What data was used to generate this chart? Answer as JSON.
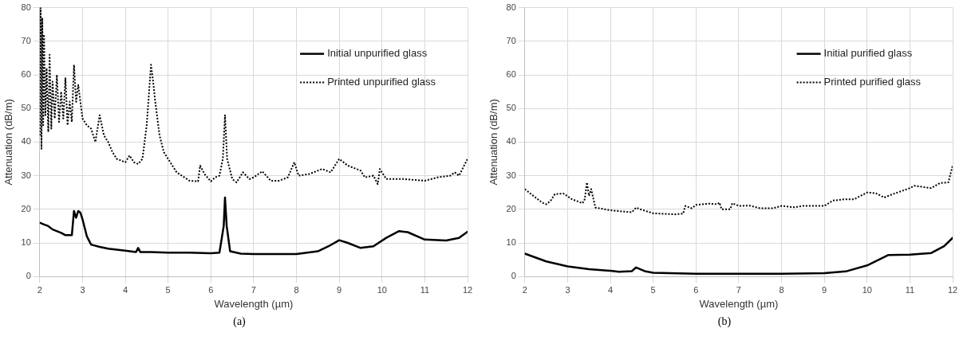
{
  "chart_data": [
    {
      "type": "line",
      "xlabel": "Wavelength (µm)",
      "ylabel": "Attenuation (dB/m)",
      "xlim": [
        2,
        12
      ],
      "xticks": [
        2,
        3,
        4,
        5,
        6,
        7,
        8,
        9,
        10,
        11,
        12
      ],
      "ylim": [
        0,
        80
      ],
      "yticks": [
        0,
        10,
        20,
        30,
        40,
        50,
        60,
        70,
        80
      ],
      "grid": true,
      "legend": "top right",
      "marker": "none",
      "annotations": [
        "(a)"
      ],
      "series": [
        {
          "name": "Initial unpurified glass",
          "color": "#000000",
          "line_style": "solid",
          "x": [
            2,
            2.1,
            2.2,
            2.3,
            2.5,
            2.6,
            2.75,
            2.8,
            2.85,
            2.9,
            2.95,
            3.0,
            3.1,
            3.2,
            3.4,
            3.6,
            4.0,
            4.25,
            4.3,
            4.35,
            4.6,
            5,
            5.5,
            6,
            6.2,
            6.3,
            6.33,
            6.37,
            6.45,
            6.7,
            7,
            8,
            8.5,
            8.75,
            9,
            9.2,
            9.5,
            9.8,
            10.1,
            10.4,
            10.6,
            11,
            11.5,
            11.8,
            12
          ],
          "values": [
            16,
            15.5,
            15,
            14,
            13,
            12.3,
            12.3,
            19.5,
            17.5,
            19.5,
            19,
            17,
            12,
            9.5,
            8.8,
            8.3,
            7.7,
            7.3,
            8.5,
            7.3,
            7.3,
            7.1,
            7.1,
            6.9,
            7.1,
            15,
            23.5,
            15,
            7.5,
            6.8,
            6.7,
            6.7,
            7.5,
            9,
            10.8,
            10,
            8.5,
            9,
            11.5,
            13.5,
            13.2,
            11,
            10.7,
            11.5,
            13.3
          ]
        },
        {
          "name": "Printed unpurified glass",
          "color": "#000000",
          "line_style": "dotted",
          "x": [
            2.0,
            2.02,
            2.04,
            2.06,
            2.08,
            2.1,
            2.13,
            2.16,
            2.2,
            2.23,
            2.27,
            2.3,
            2.35,
            2.4,
            2.45,
            2.5,
            2.55,
            2.6,
            2.65,
            2.7,
            2.75,
            2.8,
            2.85,
            2.9,
            3.0,
            3.1,
            3.2,
            3.3,
            3.4,
            3.5,
            3.6,
            3.7,
            3.8,
            4.0,
            4.1,
            4.2,
            4.3,
            4.4,
            4.5,
            4.6,
            4.65,
            4.7,
            4.8,
            4.9,
            5.0,
            5.2,
            5.5,
            5.7,
            5.75,
            5.85,
            6.0,
            6.1,
            6.2,
            6.28,
            6.33,
            6.38,
            6.5,
            6.6,
            6.75,
            6.9,
            7.0,
            7.2,
            7.4,
            7.6,
            7.8,
            7.95,
            8.05,
            8.3,
            8.6,
            8.8,
            9.0,
            9.2,
            9.5,
            9.6,
            9.8,
            9.9,
            9.95,
            10.1,
            10.5,
            11,
            11.3,
            11.6,
            11.7,
            11.8,
            12
          ],
          "values": [
            42,
            80,
            38,
            77,
            45,
            72,
            48,
            62,
            43,
            66,
            44,
            58,
            47,
            60,
            46,
            55,
            47,
            59,
            45,
            52,
            46,
            63,
            52,
            57,
            47,
            45,
            44,
            40,
            48,
            42,
            40,
            37,
            35,
            34,
            36,
            34,
            33.5,
            35,
            45,
            63,
            58,
            52,
            42,
            37,
            35,
            31,
            28.5,
            28.3,
            33,
            30.5,
            28.3,
            29.5,
            30,
            35,
            48,
            35,
            29,
            28,
            31,
            29,
            29.5,
            31.3,
            28.5,
            28.5,
            29.5,
            34,
            30,
            30.5,
            32,
            31,
            35,
            33,
            31.5,
            29.5,
            30,
            27.5,
            32,
            29,
            29,
            28.5,
            29.5,
            30,
            31,
            30,
            35
          ]
        }
      ]
    },
    {
      "type": "line",
      "xlabel": "Wavelength (µm)",
      "ylabel": "Attenuation (dB/m)",
      "xlim": [
        2,
        12
      ],
      "xticks": [
        2,
        3,
        4,
        5,
        6,
        7,
        8,
        9,
        10,
        11,
        12
      ],
      "ylim": [
        0,
        80
      ],
      "yticks": [
        0,
        10,
        20,
        30,
        40,
        50,
        60,
        70,
        80
      ],
      "grid": true,
      "legend": "top right",
      "marker": "none",
      "annotations": [
        "(b)"
      ],
      "series": [
        {
          "name": "Initial purified glass",
          "color": "#000000",
          "line_style": "solid",
          "x": [
            2,
            2.5,
            3,
            3.5,
            4,
            4.2,
            4.5,
            4.6,
            4.8,
            5,
            6,
            7,
            8,
            9,
            9.5,
            10,
            10.5,
            11,
            11.5,
            11.8,
            12
          ],
          "values": [
            6.8,
            4.5,
            3,
            2.2,
            1.7,
            1.4,
            1.6,
            2.7,
            1.6,
            1.1,
            0.8,
            0.8,
            0.8,
            1,
            1.5,
            3.3,
            6.4,
            6.5,
            7,
            9,
            11.5
          ]
        },
        {
          "name": "Printed purified glass",
          "color": "#000000",
          "line_style": "dotted",
          "x": [
            2,
            2.2,
            2.4,
            2.5,
            2.6,
            2.7,
            2.9,
            3.1,
            3.35,
            3.4,
            3.45,
            3.5,
            3.55,
            3.65,
            4,
            4.5,
            4.6,
            4.7,
            5,
            5.5,
            5.7,
            5.75,
            5.9,
            6,
            6.3,
            6.5,
            6.55,
            6.6,
            6.8,
            6.85,
            7,
            7.25,
            7.5,
            7.8,
            8,
            8.3,
            8.5,
            9,
            9.2,
            9.5,
            9.7,
            10,
            10.2,
            10.4,
            10.6,
            11,
            11.1,
            11.5,
            11.7,
            11.9,
            12
          ],
          "values": [
            26,
            24,
            22,
            21.5,
            22.5,
            24.5,
            24.7,
            23,
            21.8,
            23,
            28,
            24,
            26,
            20.5,
            19.7,
            19.1,
            20.5,
            20,
            18.8,
            18.5,
            18.7,
            21,
            20.3,
            21.3,
            21.7,
            21.5,
            22,
            20,
            20,
            21.8,
            21,
            21.1,
            20.3,
            20.3,
            21,
            20.6,
            21,
            21,
            22.6,
            23,
            23,
            25,
            24.8,
            23.5,
            24.5,
            26.3,
            27,
            26.3,
            27.8,
            28,
            33
          ]
        }
      ]
    }
  ]
}
